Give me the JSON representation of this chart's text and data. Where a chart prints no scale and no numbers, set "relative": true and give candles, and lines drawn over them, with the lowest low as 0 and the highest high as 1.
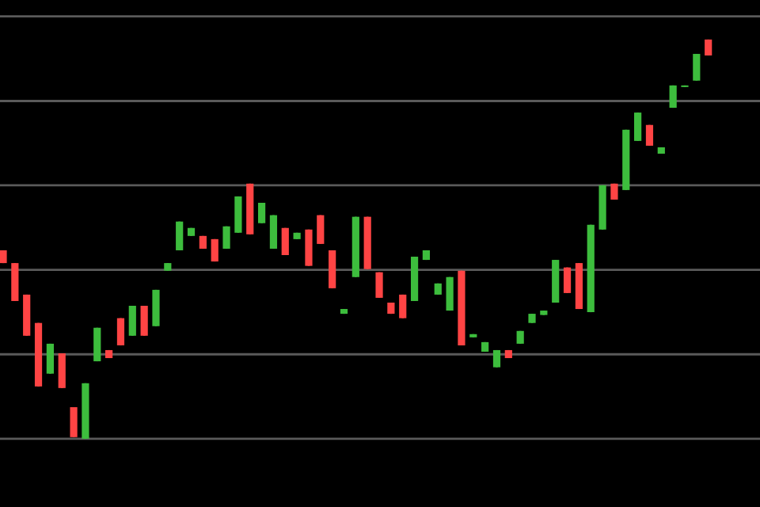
{
  "chart_data": {
    "type": "candlestick",
    "relative": true,
    "ref_lines": [
      {
        "axis": "y",
        "value": 0,
        "color": "#5a5a5a"
      },
      {
        "axis": "y",
        "value": 0.2115,
        "color": "#5a5a5a"
      },
      {
        "axis": "y",
        "value": 0.423,
        "color": "#5a5a5a"
      },
      {
        "axis": "y",
        "value": 0.635,
        "color": "#5a5a5a"
      },
      {
        "axis": "y",
        "value": 0.846,
        "color": "#5a5a5a"
      },
      {
        "axis": "y",
        "value": 1.058,
        "color": "#5a5a5a"
      }
    ],
    "categories": [
      null,
      null,
      null,
      null,
      null,
      null,
      null,
      null,
      null,
      null,
      null,
      null,
      null,
      null,
      null,
      null,
      null,
      null,
      null,
      null,
      null,
      null,
      null,
      null,
      null,
      null,
      null,
      null,
      null,
      null,
      null,
      null,
      null,
      null,
      null,
      null,
      null,
      null,
      null,
      null,
      null,
      null,
      null,
      null,
      null,
      null,
      null,
      null,
      null,
      null,
      null,
      null,
      null,
      null,
      null,
      null,
      null,
      null,
      null,
      null,
      null
    ],
    "ohlc": [
      [
        0.472,
        0.472,
        0.44,
        0.44
      ],
      [
        0.44,
        0.44,
        0.345,
        0.345
      ],
      [
        0.361,
        0.361,
        0.258,
        0.258
      ],
      [
        0.29,
        0.29,
        0.131,
        0.131
      ],
      [
        0.163,
        0.238,
        0.163,
        0.238
      ],
      [
        0.214,
        0.214,
        0.127,
        0.127
      ],
      [
        0.079,
        0.079,
        0.004,
        0.004
      ],
      [
        0,
        0.139,
        0,
        0.139
      ],
      [
        0.194,
        0.278,
        0.194,
        0.278
      ],
      [
        0.222,
        0.222,
        0.202,
        0.202
      ],
      [
        0.302,
        0.302,
        0.234,
        0.234
      ],
      [
        0.258,
        0.333,
        0.258,
        0.333
      ],
      [
        0.333,
        0.333,
        0.258,
        0.258
      ],
      [
        0.282,
        0.373,
        0.282,
        0.373
      ],
      [
        0.421,
        0.44,
        0.421,
        0.44
      ],
      [
        0.472,
        0.544,
        0.472,
        0.544
      ],
      [
        0.508,
        0.528,
        0.508,
        0.528
      ],
      [
        0.508,
        0.508,
        0.476,
        0.476
      ],
      [
        0.5,
        0.5,
        0.444,
        0.444
      ],
      [
        0.476,
        0.532,
        0.476,
        0.532
      ],
      [
        0.516,
        0.607,
        0.516,
        0.607
      ],
      [
        0.639,
        0.639,
        0.512,
        0.512
      ],
      [
        0.54,
        0.591,
        0.54,
        0.591
      ],
      [
        0.476,
        0.56,
        0.476,
        0.56
      ],
      [
        0.528,
        0.528,
        0.46,
        0.46
      ],
      [
        0.5,
        0.516,
        0.5,
        0.516
      ],
      [
        0.524,
        0.524,
        0.433,
        0.433
      ],
      [
        0.56,
        0.56,
        0.488,
        0.488
      ],
      [
        0.472,
        0.472,
        0.377,
        0.377
      ],
      [
        0.313,
        0.325,
        0.313,
        0.325
      ],
      [
        0.405,
        0.556,
        0.405,
        0.556
      ],
      [
        0.556,
        0.556,
        0.425,
        0.425
      ],
      [
        0.417,
        0.417,
        0.353,
        0.353
      ],
      [
        0.341,
        0.341,
        0.313,
        0.313
      ],
      [
        0.361,
        0.361,
        0.302,
        0.302
      ],
      [
        0.345,
        0.456,
        0.345,
        0.456
      ],
      [
        0.448,
        0.472,
        0.448,
        0.472
      ],
      [
        0.361,
        0.389,
        0.361,
        0.389
      ],
      [
        0.321,
        0.405,
        0.321,
        0.405
      ],
      [
        0.421,
        0.421,
        0.234,
        0.234
      ],
      [
        0.254,
        0.262,
        0.254,
        0.262
      ],
      [
        0.218,
        0.242,
        0.218,
        0.242
      ],
      [
        0.179,
        0.222,
        0.179,
        0.222
      ],
      [
        0.222,
        0.222,
        0.202,
        0.202
      ],
      [
        0.238,
        0.27,
        0.238,
        0.27
      ],
      [
        0.29,
        0.313,
        0.29,
        0.313
      ],
      [
        0.31,
        0.321,
        0.31,
        0.321
      ],
      [
        0.341,
        0.448,
        0.341,
        0.448
      ],
      [
        0.429,
        0.429,
        0.365,
        0.365
      ],
      [
        0.44,
        0.44,
        0.325,
        0.325
      ],
      [
        0.317,
        0.536,
        0.317,
        0.536
      ],
      [
        0.524,
        0.635,
        0.524,
        0.635
      ],
      [
        0.639,
        0.639,
        0.599,
        0.599
      ],
      [
        0.623,
        0.774,
        0.623,
        0.774
      ],
      [
        0.746,
        0.817,
        0.746,
        0.817
      ],
      [
        0.786,
        0.786,
        0.734,
        0.734
      ],
      [
        0.714,
        0.73,
        0.714,
        0.73
      ],
      [
        0.829,
        0.885,
        0.829,
        0.885
      ],
      [
        0.881,
        0.885,
        0.881,
        0.885
      ],
      [
        0.897,
        0.964,
        0.897,
        0.964
      ],
      [
        1,
        1,
        0.96,
        0.96
      ]
    ],
    "colors": [
      "#ff4444",
      "#ff4444",
      "#ff4444",
      "#ff4444",
      "#3dbd3d",
      "#ff4444",
      "#ff4444",
      "#3dbd3d",
      "#3dbd3d",
      "#ff4444",
      "#ff4444",
      "#3dbd3d",
      "#ff4444",
      "#3dbd3d",
      "#3dbd3d",
      "#3dbd3d",
      "#3dbd3d",
      "#ff4444",
      "#ff4444",
      "#3dbd3d",
      "#3dbd3d",
      "#ff4444",
      "#3dbd3d",
      "#3dbd3d",
      "#ff4444",
      "#3dbd3d",
      "#ff4444",
      "#ff4444",
      "#ff4444",
      "#3dbd3d",
      "#3dbd3d",
      "#ff4444",
      "#ff4444",
      "#ff4444",
      "#ff4444",
      "#3dbd3d",
      "#3dbd3d",
      "#3dbd3d",
      "#3dbd3d",
      "#ff4444",
      "#3dbd3d",
      "#3dbd3d",
      "#3dbd3d",
      "#ff4444",
      "#3dbd3d",
      "#3dbd3d",
      "#3dbd3d",
      "#3dbd3d",
      "#ff4444",
      "#ff4444",
      "#3dbd3d",
      "#3dbd3d",
      "#ff4444",
      "#3dbd3d",
      "#3dbd3d",
      "#ff4444",
      "#3dbd3d",
      "#3dbd3d",
      "#3dbd3d",
      "#3dbd3d",
      "#ff4444"
    ]
  }
}
